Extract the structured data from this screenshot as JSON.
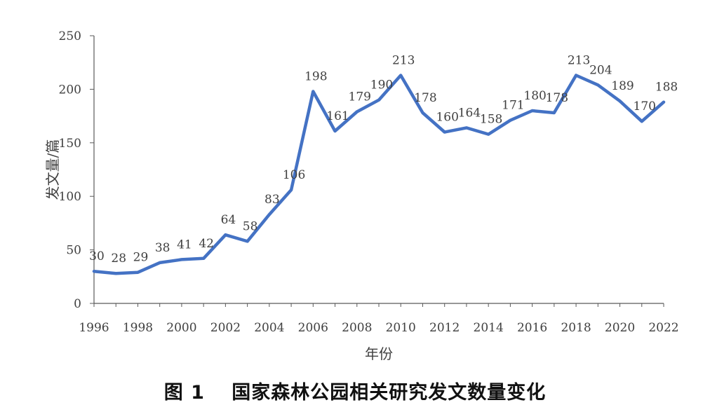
{
  "chart_data": {
    "type": "line",
    "title": "",
    "xlabel": "年份",
    "ylabel": "发文量/篇",
    "ylim": [
      0,
      250
    ],
    "yticks": [
      0,
      50,
      100,
      150,
      200,
      250
    ],
    "xticks": [
      1996,
      1998,
      2000,
      2002,
      2004,
      2006,
      2008,
      2010,
      2012,
      2014,
      2016,
      2018,
      2020,
      2022
    ],
    "grid": false,
    "legend": "none",
    "line_color": "#4472C4",
    "series": [
      {
        "x": [
          1996,
          1997,
          1998,
          1999,
          2000,
          2001,
          2002,
          2003,
          2004,
          2005,
          2006,
          2007,
          2008,
          2009,
          2010,
          2011,
          2012,
          2013,
          2014,
          2015,
          2016,
          2017,
          2018,
          2019,
          2020,
          2021,
          2022
        ],
        "values": [
          30,
          28,
          29,
          38,
          41,
          42,
          64,
          58,
          83,
          106,
          198,
          161,
          179,
          190,
          213,
          178,
          160,
          164,
          158,
          171,
          180,
          178,
          213,
          204,
          189,
          170,
          188
        ]
      }
    ]
  },
  "caption": "图 1　 国家森林公园相关研究发文数量变化"
}
